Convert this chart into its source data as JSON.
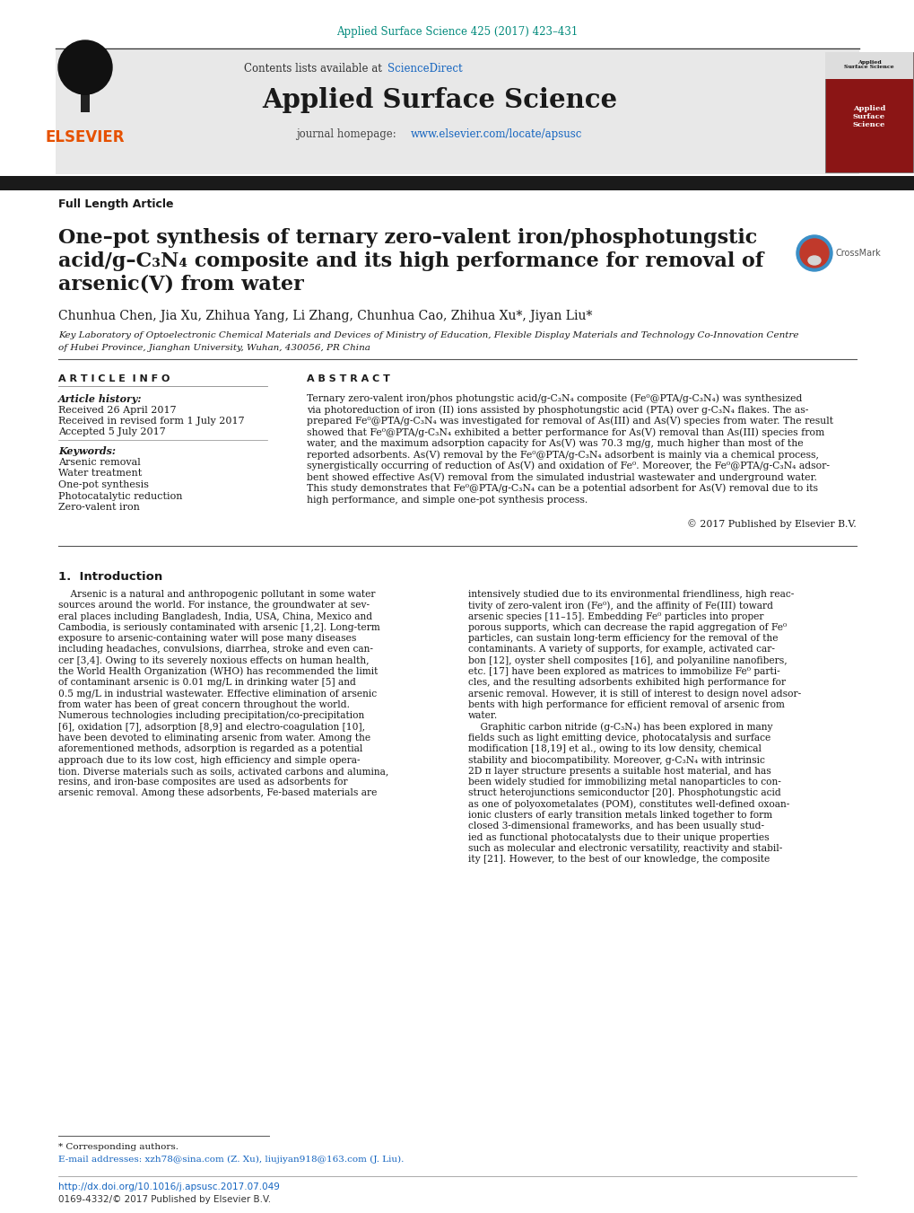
{
  "bg_color": "#ffffff",
  "header_citation": "Applied Surface Science 425 (2017) 423–431",
  "header_citation_color": "#00897b",
  "journal_bg_color": "#e8e8e8",
  "journal_name": "Applied Surface Science",
  "contents_text": "Contents lists available at ",
  "sciencedirect_text": "ScienceDirect",
  "sciencedirect_color": "#1565c0",
  "journal_homepage_text": "journal homepage: ",
  "journal_url": "www.elsevier.com/locate/apsusc",
  "journal_url_color": "#1565c0",
  "elsevier_color": "#e65100",
  "dark_bar_color": "#1a1a1a",
  "article_type": "Full Length Article",
  "article_title_line1": "One–pot synthesis of ternary zero–valent iron/phosphotungstic",
  "article_title_line2": "acid/g–C₃N₄ composite and its high performance for removal of",
  "article_title_line3": "arsenic(V) from water",
  "authors": "Chunhua Chen, Jia Xu, Zhihua Yang, Li Zhang, Chunhua Cao, Zhihua Xu*, Jiyan Liu*",
  "affiliation_line1": "Key Laboratory of Optoelectronic Chemical Materials and Devices of Ministry of Education, Flexible Display Materials and Technology Co-Innovation Centre",
  "affiliation_line2": "of Hubei Province, Jianghan University, Wuhan, 430056, PR China",
  "article_info_header": "A R T I C L E  I N F O",
  "abstract_header": "A B S T R A C T",
  "article_history_label": "Article history:",
  "received_1": "Received 26 April 2017",
  "received_revised": "Received in revised form 1 July 2017",
  "accepted": "Accepted 5 July 2017",
  "keywords_label": "Keywords:",
  "keywords": [
    "Arsenic removal",
    "Water treatment",
    "One-pot synthesis",
    "Photocatalytic reduction",
    "Zero-valent iron"
  ],
  "abstract_text": "Ternary zero-valent iron/phos photungstic acid/g-C₃N₄ composite (Fe⁰@PTA/g-C₃N₄) was synthesized via photoreduction of iron (II) ions assisted by phosphotungstic acid (PTA) over g-C₃N₄ flakes. The as-prepared Fe⁰@PTA/g-C₃N₄ was investigated for removal of As(III) and As(V) species from water. The result showed that Fe⁰@PTA/g-C₃N₄ exhibited a better performance for As(V) removal than As(III) species from water, and the maximum adsorption capacity for As(V) was 70.3 mg/g, much higher than most of the reported adsorbents. As(V) removal by the Fe⁰@PTA/g-C₃N₄ adsorbent is mainly via a chemical process, synergistically occurring of reduction of As(V) and oxidation of Fe⁰. Moreover, the Fe⁰@PTA/g-C₃N₄ adsorbent showed effective As(V) removal from the simulated industrial wastewater and underground water. This study demonstrates that Fe⁰@PTA/g-C₃N₄ can be a potential adsorbent for As(V) removal due to its high performance, and simple one-pot synthesis process.",
  "copyright_text": "© 2017 Published by Elsevier B.V.",
  "intro_header": "1.  Introduction",
  "intro_col1_lines": [
    "    Arsenic is a natural and anthropogenic pollutant in some water",
    "sources around the world. For instance, the groundwater at sev-",
    "eral places including Bangladesh, India, USA, China, Mexico and",
    "Cambodia, is seriously contaminated with arsenic [1,2]. Long-term",
    "exposure to arsenic-containing water will pose many diseases",
    "including headaches, convulsions, diarrhea, stroke and even can-",
    "cer [3,4]. Owing to its severely noxious effects on human health,",
    "the World Health Organization (WHO) has recommended the limit",
    "of contaminant arsenic is 0.01 mg/L in drinking water [5] and",
    "0.5 mg/L in industrial wastewater. Effective elimination of arsenic",
    "from water has been of great concern throughout the world.",
    "Numerous technologies including precipitation/co-precipitation",
    "[6], oxidation [7], adsorption [8,9] and electro-coagulation [10],",
    "have been devoted to eliminating arsenic from water. Among the",
    "aforementioned methods, adsorption is regarded as a potential",
    "approach due to its low cost, high efficiency and simple opera-",
    "tion. Diverse materials such as soils, activated carbons and alumina,",
    "resins, and iron-base composites are used as adsorbents for",
    "arsenic removal. Among these adsorbents, Fe-based materials are"
  ],
  "intro_col2_lines": [
    "intensively studied due to its environmental friendliness, high reac-",
    "tivity of zero-valent iron (Fe⁰), and the affinity of Fe(III) toward",
    "arsenic species [11–15]. Embedding Fe⁰ particles into proper",
    "porous supports, which can decrease the rapid aggregation of Fe⁰",
    "particles, can sustain long-term efficiency for the removal of the",
    "contaminants. A variety of supports, for example, activated car-",
    "bon [12], oyster shell composites [16], and polyaniline nanofibers,",
    "etc. [17] have been explored as matrices to immobilize Fe⁰ parti-",
    "cles, and the resulting adsorbents exhibited high performance for",
    "arsenic removal. However, it is still of interest to design novel adsor-",
    "bents with high performance for efficient removal of arsenic from",
    "water.",
    "    Graphitic carbon nitride (g-C₃N₄) has been explored in many",
    "fields such as light emitting device, photocatalysis and surface",
    "modification [18,19] et al., owing to its low density, chemical",
    "stability and biocompatibility. Moreover, g-C₃N₄ with intrinsic",
    "2D π layer structure presents a suitable host material, and has",
    "been widely studied for immobilizing metal nanoparticles to con-",
    "struct heterojunctions semiconductor [20]. Phosphotungstic acid",
    "as one of polyoxometalates (POM), constitutes well-defined oxoan-",
    "ionic clusters of early transition metals linked together to form",
    "closed 3-dimensional frameworks, and has been usually stud-",
    "ied as functional photocatalysts due to their unique properties",
    "such as molecular and electronic versatility, reactivity and stabil-",
    "ity [21]. However, to the best of our knowledge, the composite"
  ],
  "footnote_star": "* Corresponding authors.",
  "footnote_email": "E-mail addresses: xzh78@sina.com (Z. Xu), liujiyan918@163.com (J. Liu).",
  "doi_text": "http://dx.doi.org/10.1016/j.apsusc.2017.07.049",
  "doi_color": "#1565c0",
  "issn_text": "0169-4332/© 2017 Published by Elsevier B.V."
}
